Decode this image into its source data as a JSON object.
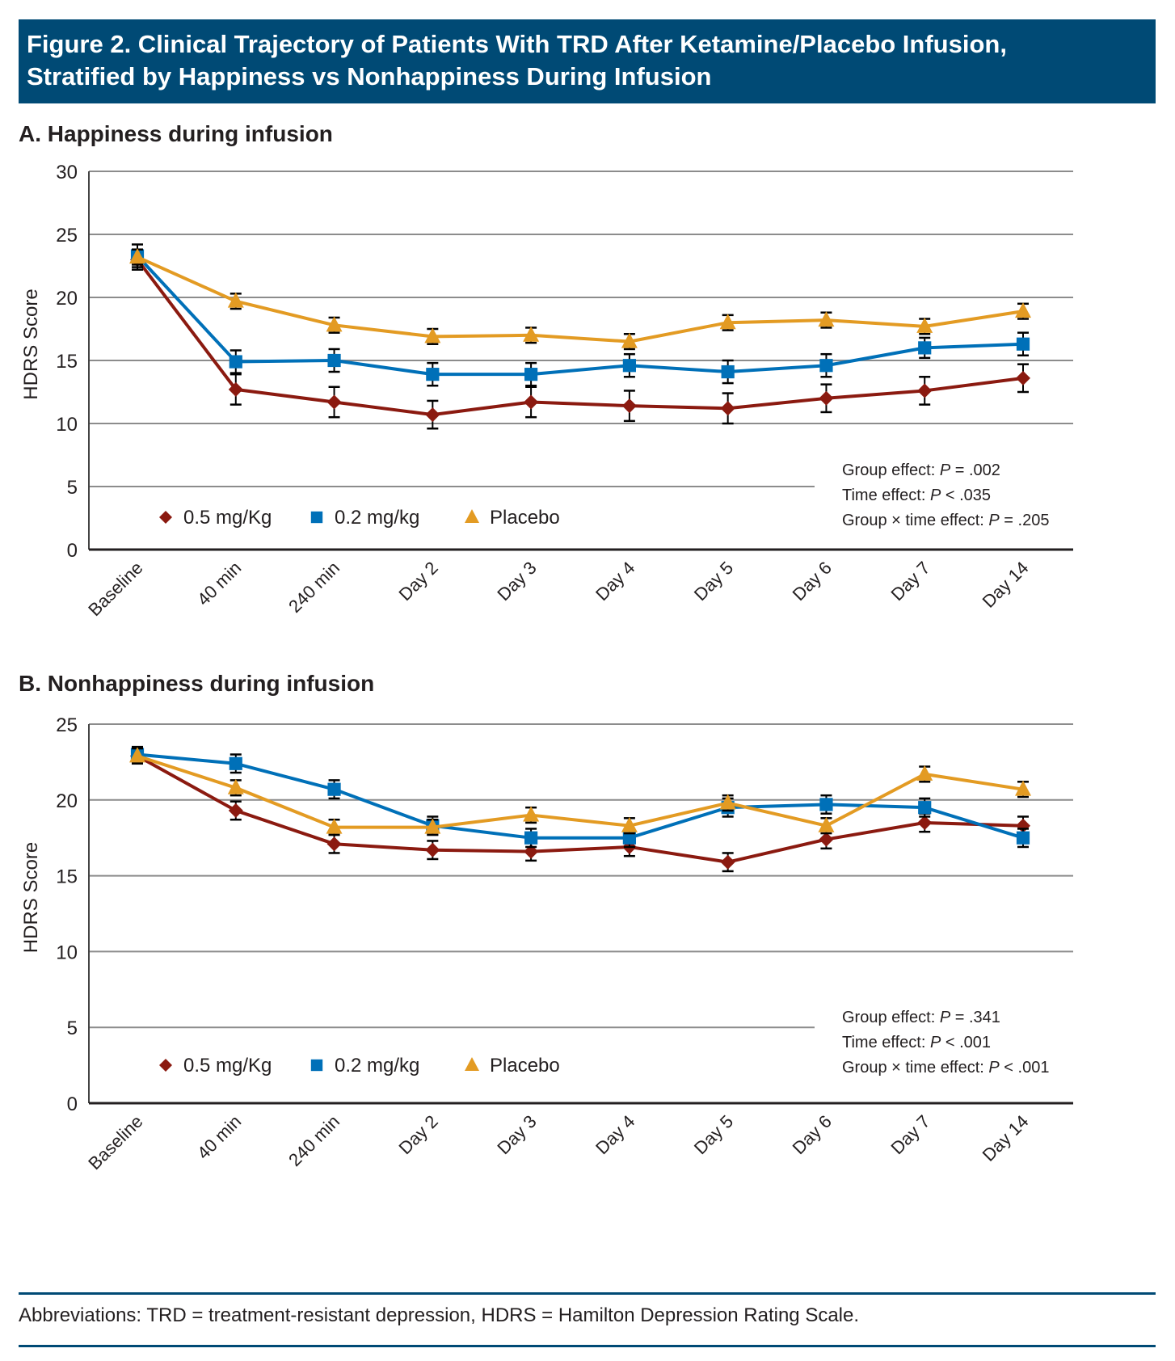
{
  "figure": {
    "title_line1": "Figure 2. Clinical Trajectory of Patients With TRD After Ketamine/Placebo Infusion,",
    "title_line2": "Stratified by Happiness vs Nonhappiness During Infusion",
    "footnote": "Abbreviations: TRD = treatment-resistant depression, HDRS = Hamilton Depression Rating Scale.",
    "colors": {
      "header_bg": "#004a75",
      "dose_05": "#8b1a10",
      "dose_02": "#0070b8",
      "placebo": "#e39b23"
    }
  },
  "chart_data": [
    {
      "type": "line",
      "title": "A. Happiness during infusion",
      "xlabel": "",
      "ylabel": "HDRS Score",
      "ylim": [
        0,
        30
      ],
      "yticks": [
        0,
        5,
        10,
        15,
        20,
        25,
        30
      ],
      "grid": true,
      "legend_position": "bottom-left",
      "categories": [
        "Baseline",
        "40 min",
        "240 min",
        "Day 2",
        "Day 3",
        "Day 4",
        "Day 5",
        "Day 6",
        "Day 7",
        "Day 14"
      ],
      "series": [
        {
          "name": "0.5 mg/Kg",
          "marker": "diamond",
          "color": "#8b1a10",
          "values": [
            23.0,
            12.7,
            11.7,
            10.7,
            11.7,
            11.4,
            11.2,
            12.0,
            12.6,
            13.6
          ],
          "error": [
            0.8,
            1.2,
            1.2,
            1.1,
            1.2,
            1.2,
            1.2,
            1.1,
            1.1,
            1.1
          ]
        },
        {
          "name": "0.2 mg/kg",
          "marker": "square",
          "color": "#0070b8",
          "values": [
            23.3,
            14.9,
            15.0,
            13.9,
            13.9,
            14.6,
            14.1,
            14.6,
            16.0,
            16.3
          ],
          "error": [
            0.9,
            0.9,
            0.9,
            0.9,
            0.9,
            0.9,
            0.9,
            0.9,
            0.8,
            0.9
          ]
        },
        {
          "name": "Placebo",
          "marker": "triangle",
          "color": "#e39b23",
          "values": [
            23.2,
            19.7,
            17.8,
            16.9,
            17.0,
            16.5,
            18.0,
            18.2,
            17.7,
            18.9
          ],
          "error": [
            0.6,
            0.6,
            0.6,
            0.6,
            0.6,
            0.6,
            0.6,
            0.6,
            0.6,
            0.6
          ]
        }
      ],
      "stats": [
        "Group effect: P = .002",
        "Time effect: P < .035",
        "Group × time effect: P = .205"
      ]
    },
    {
      "type": "line",
      "title": "B. Nonhappiness during infusion",
      "xlabel": "",
      "ylabel": "HDRS Score",
      "ylim": [
        0,
        25
      ],
      "yticks": [
        0,
        5,
        10,
        15,
        20,
        25
      ],
      "grid": true,
      "legend_position": "bottom-left",
      "categories": [
        "Baseline",
        "40 min",
        "240 min",
        "Day 2",
        "Day 3",
        "Day 4",
        "Day 5",
        "Day 6",
        "Day 7",
        "Day 14"
      ],
      "series": [
        {
          "name": "0.5 mg/Kg",
          "marker": "diamond",
          "color": "#8b1a10",
          "values": [
            22.9,
            19.3,
            17.1,
            16.7,
            16.6,
            16.9,
            15.9,
            17.4,
            18.5,
            18.3
          ],
          "error": [
            0.5,
            0.6,
            0.6,
            0.6,
            0.6,
            0.6,
            0.6,
            0.6,
            0.6,
            0.6
          ]
        },
        {
          "name": "0.2 mg/kg",
          "marker": "square",
          "color": "#0070b8",
          "values": [
            23.0,
            22.4,
            20.7,
            18.3,
            17.5,
            17.5,
            19.5,
            19.7,
            19.5,
            17.5
          ],
          "error": [
            0.5,
            0.6,
            0.6,
            0.6,
            0.6,
            0.6,
            0.6,
            0.6,
            0.6,
            0.6
          ]
        },
        {
          "name": "Placebo",
          "marker": "triangle",
          "color": "#e39b23",
          "values": [
            22.9,
            20.8,
            18.2,
            18.2,
            19.0,
            18.3,
            19.8,
            18.3,
            21.7,
            20.7
          ],
          "error": [
            0.5,
            0.5,
            0.5,
            0.5,
            0.5,
            0.5,
            0.5,
            0.5,
            0.5,
            0.5
          ]
        }
      ],
      "stats": [
        "Group effect: P = .341",
        "Time effect: P < .001",
        "Group × time effect: P < .001"
      ]
    }
  ]
}
